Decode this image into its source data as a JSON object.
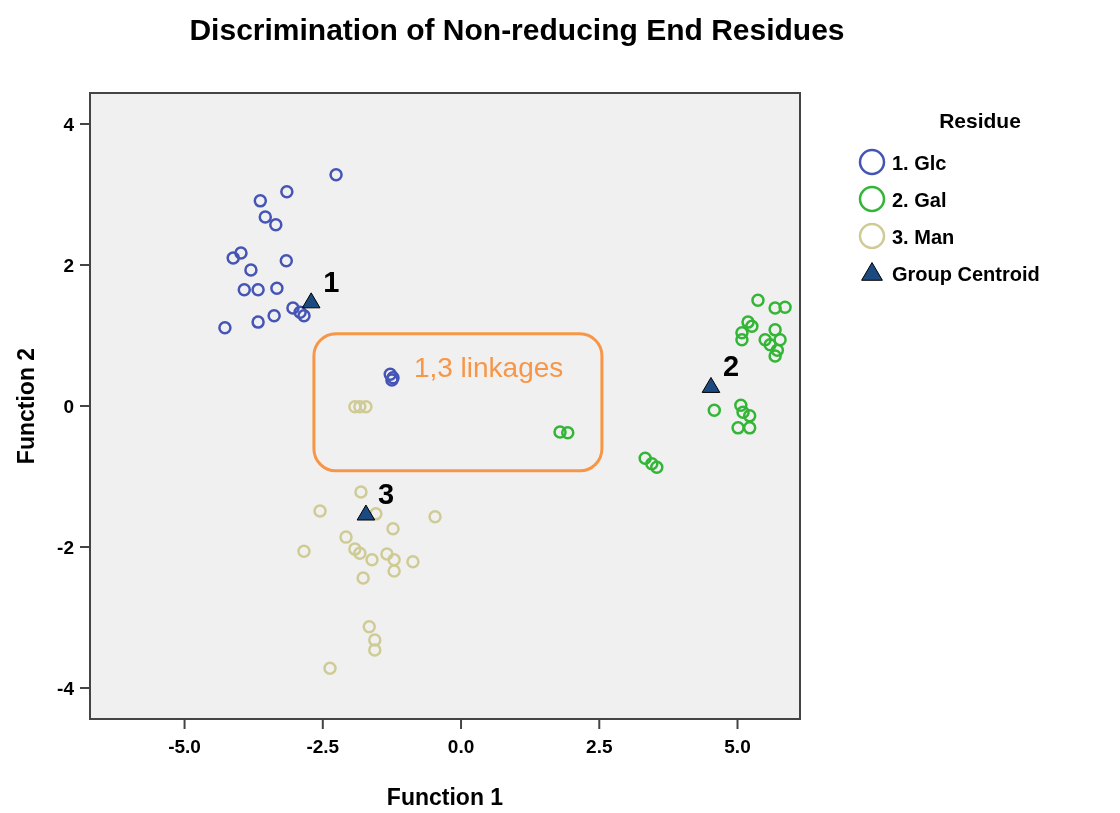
{
  "chart_data": {
    "type": "scatter",
    "title": "Discrimination of Non-reducing End Residues",
    "xlabel": "Function 1",
    "ylabel": "Function 2",
    "legend_title": "Residue",
    "legend": "right",
    "grid": false,
    "marker": "circle",
    "xlim": [
      -6.71,
      6.13
    ],
    "ylim": [
      -4.44,
      4.44
    ],
    "xticks": [
      {
        "value": -5,
        "label": "-5.0"
      },
      {
        "value": -2.5,
        "label": "-2.5"
      },
      {
        "value": 0,
        "label": "0.0"
      },
      {
        "value": 2.5,
        "label": "2.5"
      },
      {
        "value": 5,
        "label": "5.0"
      }
    ],
    "yticks": [
      -4,
      -2,
      0,
      2,
      4
    ],
    "series": [
      {
        "name": "1. Glc",
        "color": "#4455b5",
        "x": [
          -2.26,
          -3.15,
          -3.63,
          -3.54,
          -3.35,
          -3.98,
          -4.12,
          -3.16,
          -3.8,
          -3.92,
          -3.67,
          -3.33,
          -3.04,
          -2.91,
          -2.84,
          -3.38,
          -3.67,
          -4.27,
          -1.28,
          -1.23,
          -1.25
        ],
        "values": [
          3.28,
          3.04,
          2.91,
          2.68,
          2.57,
          2.17,
          2.1,
          2.06,
          1.93,
          1.65,
          1.65,
          1.67,
          1.39,
          1.33,
          1.28,
          1.28,
          1.19,
          1.11,
          0.45,
          0.4,
          0.37
        ]
      },
      {
        "name": "2. Gal",
        "color": "#33b536",
        "x": [
          5.37,
          5.68,
          5.86,
          5.19,
          5.26,
          5.08,
          5.08,
          5.5,
          5.77,
          5.68,
          5.72,
          5.68,
          5.59,
          4.58,
          5.06,
          5.1,
          5.22,
          5.01,
          5.22,
          1.79,
          1.93,
          3.33,
          3.45,
          3.54
        ],
        "values": [
          1.5,
          1.39,
          1.4,
          1.19,
          1.13,
          1.04,
          0.94,
          0.94,
          0.94,
          1.08,
          0.79,
          0.71,
          0.87,
          -0.06,
          0.01,
          -0.09,
          -0.14,
          -0.31,
          -0.31,
          -0.37,
          -0.38,
          -0.74,
          -0.82,
          -0.87
        ]
      },
      {
        "name": "3. Man",
        "color": "#cfcb95",
        "x": [
          -1.92,
          -1.83,
          -1.72,
          -1.81,
          -2.55,
          -1.54,
          -0.47,
          -1.23,
          -2.08,
          -2.84,
          -1.92,
          -1.83,
          -1.61,
          -1.34,
          -1.21,
          -1.21,
          -0.87,
          -1.77,
          -1.66,
          -1.56,
          -1.56,
          -2.37
        ],
        "values": [
          -0.01,
          -0.01,
          -0.01,
          -1.22,
          -1.49,
          -1.53,
          -1.57,
          -1.74,
          -1.86,
          -2.06,
          -2.03,
          -2.09,
          -2.18,
          -2.1,
          -2.18,
          -2.34,
          -2.21,
          -2.44,
          -3.13,
          -3.32,
          -3.46,
          -3.72
        ]
      },
      {
        "name": "Group Centroid",
        "color": "#1a4a80",
        "marker": "triangle",
        "x": [
          -2.71,
          4.52,
          -1.72
        ],
        "values": [
          1.48,
          0.28,
          -1.53
        ]
      }
    ],
    "annotations": [
      {
        "text": "1",
        "x": -2.71,
        "y": 1.48
      },
      {
        "text": "2",
        "x": 4.52,
        "y": 0.28
      },
      {
        "text": "3",
        "x": -1.72,
        "y": -1.53
      },
      {
        "text": "1,3 linkages",
        "x": -1.25,
        "y": 0.4
      }
    ]
  }
}
